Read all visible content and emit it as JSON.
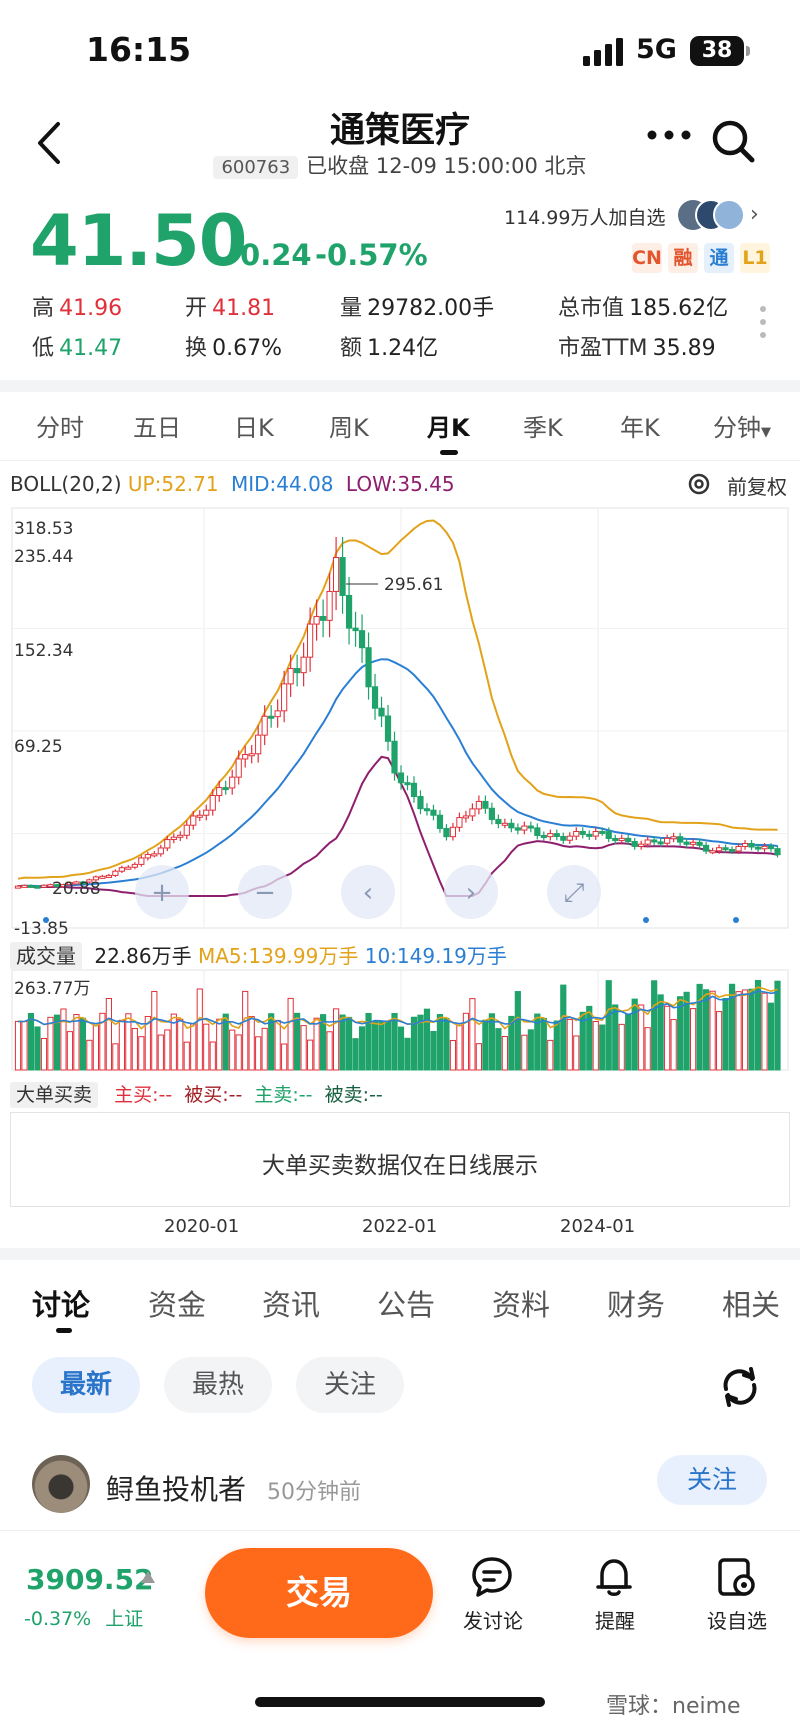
{
  "status": {
    "time": "16:15",
    "network": "5G",
    "battery": "38"
  },
  "header": {
    "title": "通策医疗",
    "code": "600763",
    "market_status": "已收盘 12-09 15:00:00 北京"
  },
  "quote": {
    "price": "41.50",
    "change": "-0.24",
    "change_pct": "-0.57%",
    "watchers": "114.99万人加自选",
    "badges": [
      "CN",
      "融",
      "通",
      "L1"
    ],
    "stats": {
      "high_label": "高",
      "high": "41.96",
      "open_label": "开",
      "open": "41.81",
      "volume_label": "量",
      "volume": "29782.00手",
      "mktcap_label": "总市值",
      "mktcap": "185.62亿",
      "low_label": "低",
      "low": "41.47",
      "turnover_label": "换",
      "turnover": "0.67%",
      "amount_label": "额",
      "amount": "1.24亿",
      "pe_label": "市盈TTM",
      "pe": "35.89"
    }
  },
  "period_tabs": [
    "分时",
    "五日",
    "日K",
    "周K",
    "月K",
    "季K",
    "年K",
    "分钟"
  ],
  "indicator": {
    "name": "BOLL(20,2)",
    "up": "UP:52.71",
    "mid": "MID:44.08",
    "low": "LOW:35.45",
    "restore": "前复权"
  },
  "chart_data": {
    "type": "candlestick",
    "period": "monthly",
    "y_ticks": [
      "318.53",
      "235.44",
      "152.34",
      "69.25",
      "-13.85"
    ],
    "max_label": "295.61",
    "min_label": "20.88",
    "x_ticks": [
      "2020-01",
      "2022-01",
      "2024-01"
    ],
    "colors": {
      "up": "#e0303a",
      "down": "#1fa36a",
      "up_band": "#e2a21a",
      "mid_band": "#2b7fd3",
      "low_band": "#8e1f6e"
    }
  },
  "volume": {
    "label": "成交量",
    "value": "22.86万手",
    "ma5": "MA5:139.99万手",
    "ma10": "10:149.19万手",
    "max_tick": "263.77万"
  },
  "big_orders": {
    "label": "大单买卖",
    "main_buy": "主买:--",
    "passive_buy": "被买:--",
    "main_sell": "主卖:--",
    "passive_sell": "被卖:--",
    "message": "大单买卖数据仅在日线展示"
  },
  "content_tabs": [
    "讨论",
    "资金",
    "资讯",
    "公告",
    "资料",
    "财务",
    "相关"
  ],
  "filters": [
    "最新",
    "最热",
    "关注"
  ],
  "post": {
    "user": "鲟鱼投机者",
    "time": "50分钟前",
    "follow": "关注"
  },
  "bottom": {
    "index_value": "3909.52",
    "index_pct": "-0.37%",
    "index_name": "上证",
    "trade": "交易",
    "discuss": "发讨论",
    "remind": "提醒",
    "watch": "设自选"
  },
  "watermark": "雪球：neime"
}
